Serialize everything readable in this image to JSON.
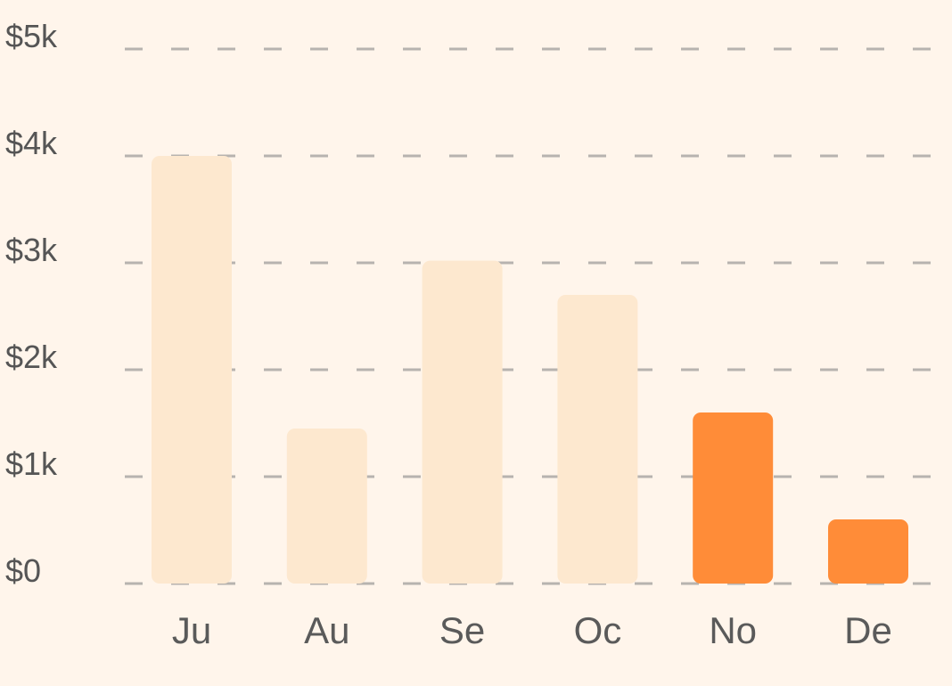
{
  "chart_data": {
    "type": "bar",
    "categories": [
      "Ju",
      "Au",
      "Se",
      "Oc",
      "No",
      "De"
    ],
    "values": [
      4000,
      1450,
      3020,
      2700,
      1600,
      600
    ],
    "highlighted": [
      false,
      false,
      false,
      false,
      true,
      true
    ],
    "ylim": [
      0,
      5000
    ],
    "y_ticks": [
      0,
      1000,
      2000,
      3000,
      4000,
      5000
    ],
    "y_tick_labels": [
      "$0",
      "$1k",
      "$2k",
      "$3k",
      "$4k",
      "$5k"
    ],
    "grid": true,
    "title": "",
    "xlabel": "",
    "ylabel": "",
    "colors": {
      "background": "#FFF5EB",
      "bar": "#FDE8CF",
      "bar_highlight": "#FF8C38",
      "grid": "#B7B3AF",
      "tick_text": "#555555",
      "category_text": "#5a5a5a"
    }
  }
}
